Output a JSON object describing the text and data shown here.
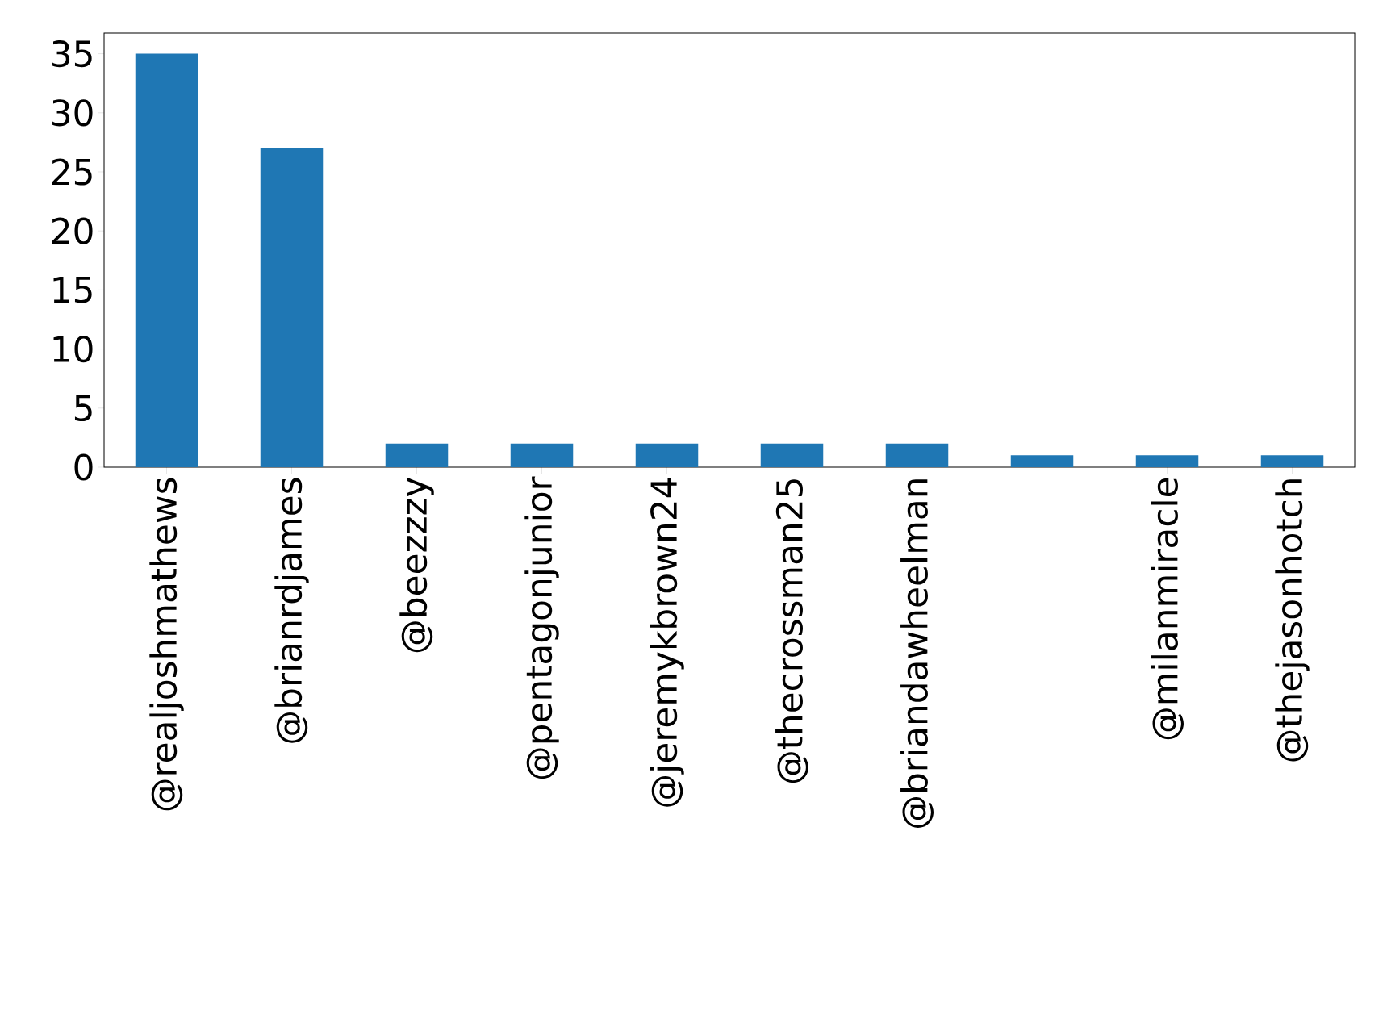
{
  "chart_data": {
    "type": "bar",
    "categories": [
      "@realjoshmathews",
      "@brianrdjames",
      "@beezzzy",
      "@pentagonjunior",
      "@jeremykbrown24",
      "@thecrossman25",
      "@briandawheelman",
      null,
      "@milanmiracle",
      "@thejasonhotch"
    ],
    "values": [
      35,
      27,
      2,
      2,
      2,
      2,
      2,
      1,
      1,
      1
    ],
    "color": "#1f77b4",
    "ylim": [
      0,
      36.75
    ],
    "yticks": [
      0,
      5,
      10,
      15,
      20,
      25,
      30,
      35
    ]
  }
}
